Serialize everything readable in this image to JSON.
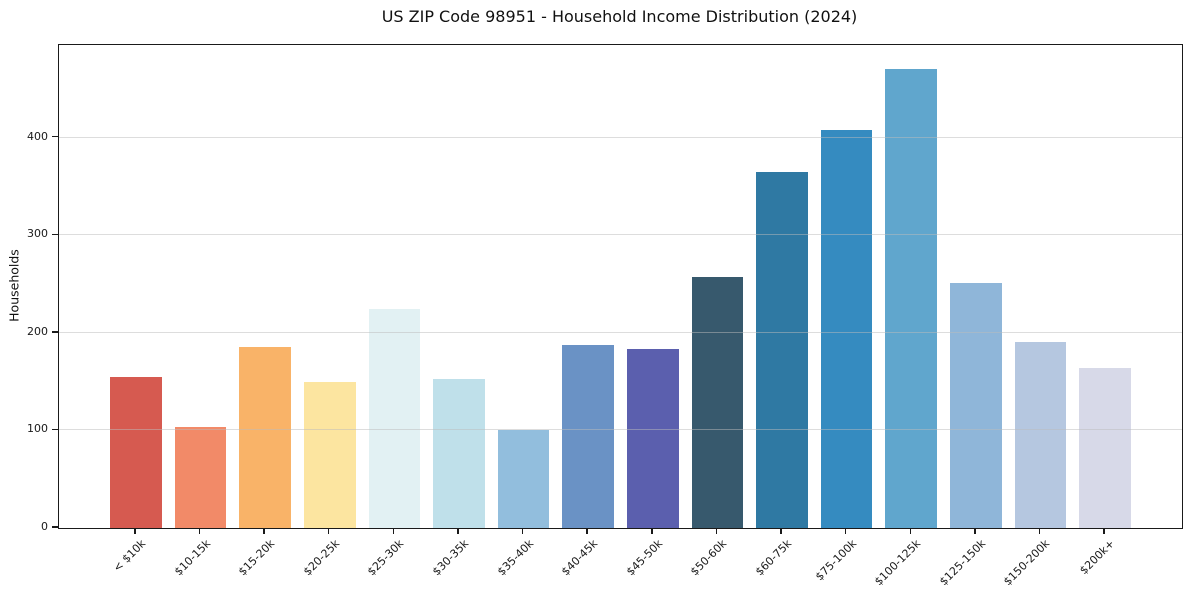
{
  "chart_data": {
    "type": "bar",
    "title": "US ZIP Code 98951 - Household Income Distribution (2024)",
    "xlabel": "",
    "ylabel": "Households",
    "categories": [
      "< $10k",
      "$10-15k",
      "$15-20k",
      "$20-25k",
      "$25-30k",
      "$30-35k",
      "$35-40k",
      "$40-45k",
      "$45-50k",
      "$50-60k",
      "$60-75k",
      "$75-100k",
      "$100-125k",
      "$125-150k",
      "$150-200k",
      "$200k+"
    ],
    "values": [
      155,
      104,
      186,
      150,
      224,
      153,
      100,
      188,
      183,
      257,
      365,
      408,
      470,
      251,
      191,
      164
    ],
    "bar_colors": [
      "#d65a50",
      "#f28a68",
      "#f9b368",
      "#fce5a0",
      "#e2f1f3",
      "#bfe0ea",
      "#92bedd",
      "#6a92c5",
      "#5b5fae",
      "#37596d",
      "#2f79a3",
      "#358bc0",
      "#60a6cd",
      "#8fb6d9",
      "#b5c7e0",
      "#d7d9e8"
    ],
    "ylim": [
      0,
      495
    ],
    "yticks": [
      0,
      100,
      200,
      300,
      400
    ],
    "grid": "horizontal",
    "legend": "none",
    "colors": {
      "axis": "#1a1a1a",
      "grid_over_bars": "rgba(187,187,187,0.5)",
      "background": "#ffffff",
      "text": "#111111"
    }
  }
}
